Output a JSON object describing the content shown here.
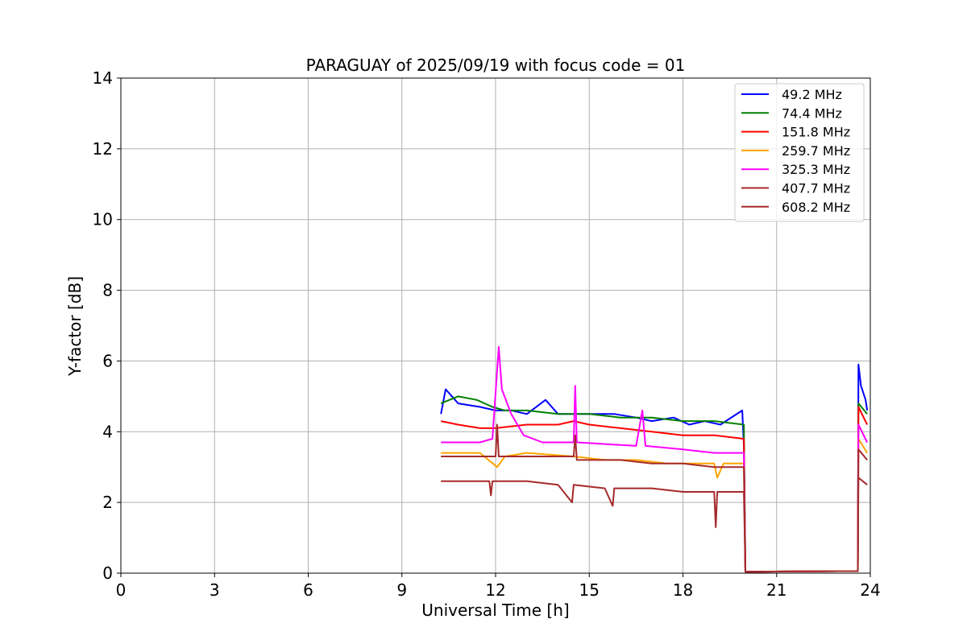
{
  "chart_data": {
    "type": "line",
    "title": "PARAGUAY of 2025/09/19 with focus code = 01",
    "xlabel": "Universal Time [h]",
    "ylabel": "Y-factor [dB]",
    "xlim": [
      0,
      24
    ],
    "ylim": [
      0,
      14
    ],
    "xticks": [
      0,
      3,
      6,
      9,
      12,
      15,
      18,
      21,
      24
    ],
    "yticks": [
      0,
      2,
      4,
      6,
      8,
      10,
      12,
      14
    ],
    "grid": true,
    "legend_position": "top-right",
    "series": [
      {
        "name": "49.2 MHz",
        "legend_label": " 49.2 MHz",
        "color": "#0000ff",
        "points": [
          [
            10.25,
            4.5
          ],
          [
            10.4,
            5.2
          ],
          [
            10.8,
            4.8
          ],
          [
            11.5,
            4.7
          ],
          [
            12.0,
            4.6
          ],
          [
            12.5,
            4.6
          ],
          [
            13.0,
            4.5
          ],
          [
            13.6,
            4.9
          ],
          [
            14.0,
            4.5
          ],
          [
            15.0,
            4.5
          ],
          [
            15.8,
            4.5
          ],
          [
            16.5,
            4.4
          ],
          [
            17.0,
            4.3
          ],
          [
            17.7,
            4.4
          ],
          [
            18.2,
            4.2
          ],
          [
            18.7,
            4.3
          ],
          [
            19.2,
            4.2
          ],
          [
            19.9,
            4.6
          ],
          [
            19.95,
            3.6
          ],
          [
            20.0,
            0.04
          ],
          [
            23.6,
            0.06
          ],
          [
            23.62,
            5.9
          ],
          [
            23.7,
            5.3
          ],
          [
            23.85,
            4.9
          ],
          [
            23.9,
            4.6
          ]
        ]
      },
      {
        "name": "74.4 MHz",
        "legend_label": " 74.4 MHz",
        "color": "#008000",
        "points": [
          [
            10.25,
            4.8
          ],
          [
            10.8,
            5.0
          ],
          [
            11.4,
            4.9
          ],
          [
            11.9,
            4.7
          ],
          [
            12.3,
            4.6
          ],
          [
            13.0,
            4.6
          ],
          [
            14.0,
            4.5
          ],
          [
            15.0,
            4.5
          ],
          [
            16.0,
            4.4
          ],
          [
            17.0,
            4.4
          ],
          [
            18.0,
            4.3
          ],
          [
            19.0,
            4.3
          ],
          [
            19.95,
            4.2
          ],
          [
            20.0,
            0.04
          ],
          [
            23.6,
            0.06
          ],
          [
            23.62,
            4.8
          ],
          [
            23.9,
            4.5
          ]
        ]
      },
      {
        "name": "151.8 MHz",
        "legend_label": "151.8 MHz",
        "color": "#ff0000",
        "points": [
          [
            10.25,
            4.3
          ],
          [
            10.8,
            4.2
          ],
          [
            11.5,
            4.1
          ],
          [
            12.0,
            4.1
          ],
          [
            13.0,
            4.2
          ],
          [
            14.0,
            4.2
          ],
          [
            14.5,
            4.3
          ],
          [
            15.0,
            4.2
          ],
          [
            16.0,
            4.1
          ],
          [
            17.0,
            4.0
          ],
          [
            18.0,
            3.9
          ],
          [
            19.0,
            3.9
          ],
          [
            19.95,
            3.8
          ],
          [
            20.0,
            0.04
          ],
          [
            23.6,
            0.06
          ],
          [
            23.62,
            4.7
          ],
          [
            23.9,
            4.2
          ]
        ]
      },
      {
        "name": "259.7 MHz",
        "legend_label": "259.7 MHz",
        "color": "#ffa500",
        "points": [
          [
            10.25,
            3.4
          ],
          [
            11.5,
            3.4
          ],
          [
            12.05,
            3.0
          ],
          [
            12.3,
            3.3
          ],
          [
            13.0,
            3.4
          ],
          [
            14.5,
            3.3
          ],
          [
            15.5,
            3.2
          ],
          [
            16.5,
            3.2
          ],
          [
            17.5,
            3.1
          ],
          [
            19.0,
            3.1
          ],
          [
            19.1,
            2.7
          ],
          [
            19.3,
            3.1
          ],
          [
            19.95,
            3.1
          ],
          [
            20.0,
            0.04
          ],
          [
            23.6,
            0.06
          ],
          [
            23.62,
            3.8
          ],
          [
            23.9,
            3.4
          ]
        ]
      },
      {
        "name": "325.3 MHz",
        "legend_label": "325.3 MHz",
        "color": "#ff00ff",
        "points": [
          [
            10.25,
            3.7
          ],
          [
            11.5,
            3.7
          ],
          [
            11.9,
            3.8
          ],
          [
            12.0,
            5.1
          ],
          [
            12.1,
            6.4
          ],
          [
            12.2,
            5.2
          ],
          [
            12.5,
            4.5
          ],
          [
            12.9,
            3.9
          ],
          [
            13.5,
            3.7
          ],
          [
            14.5,
            3.7
          ],
          [
            14.55,
            5.3
          ],
          [
            14.6,
            3.7
          ],
          [
            16.5,
            3.6
          ],
          [
            16.7,
            4.6
          ],
          [
            16.8,
            3.6
          ],
          [
            18.0,
            3.5
          ],
          [
            19.0,
            3.4
          ],
          [
            19.95,
            3.4
          ],
          [
            20.0,
            0.04
          ],
          [
            23.6,
            0.06
          ],
          [
            23.62,
            4.2
          ],
          [
            23.9,
            3.7
          ]
        ]
      },
      {
        "name": "407.7 MHz",
        "legend_label": "407.7 MHz",
        "color": "#a52a2a",
        "points": [
          [
            10.25,
            3.3
          ],
          [
            11.0,
            3.3
          ],
          [
            12.0,
            3.3
          ],
          [
            12.05,
            4.2
          ],
          [
            12.1,
            3.3
          ],
          [
            13.0,
            3.3
          ],
          [
            14.0,
            3.3
          ],
          [
            14.5,
            3.3
          ],
          [
            14.55,
            3.9
          ],
          [
            14.6,
            3.2
          ],
          [
            16.0,
            3.2
          ],
          [
            17.0,
            3.1
          ],
          [
            18.0,
            3.1
          ],
          [
            19.0,
            3.0
          ],
          [
            19.95,
            3.0
          ],
          [
            20.0,
            0.04
          ],
          [
            23.6,
            0.06
          ],
          [
            23.62,
            3.5
          ],
          [
            23.9,
            3.2
          ]
        ]
      },
      {
        "name": "608.2 MHz",
        "legend_label": "608.2 MHz",
        "color": "#a52a2a",
        "points": [
          [
            10.25,
            2.6
          ],
          [
            11.0,
            2.6
          ],
          [
            11.8,
            2.6
          ],
          [
            11.85,
            2.2
          ],
          [
            11.9,
            2.6
          ],
          [
            13.0,
            2.6
          ],
          [
            14.0,
            2.5
          ],
          [
            14.45,
            2.0
          ],
          [
            14.5,
            2.5
          ],
          [
            15.5,
            2.4
          ],
          [
            15.75,
            1.9
          ],
          [
            15.8,
            2.4
          ],
          [
            17.0,
            2.4
          ],
          [
            18.0,
            2.3
          ],
          [
            19.0,
            2.3
          ],
          [
            19.05,
            1.3
          ],
          [
            19.1,
            2.3
          ],
          [
            19.95,
            2.3
          ],
          [
            20.0,
            0.04
          ],
          [
            23.6,
            0.06
          ],
          [
            23.62,
            2.7
          ],
          [
            23.9,
            2.5
          ]
        ]
      }
    ]
  }
}
